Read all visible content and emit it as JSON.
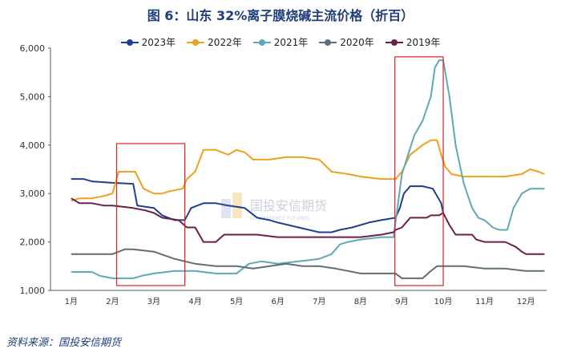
{
  "title": "图 6：山东 32%离子膜烧碱主流价格（折百）",
  "source": "资料来源：国投安信期货",
  "watermark": {
    "name": "国投安信期货",
    "sub": "SDIC ESSENCE FUTURES"
  },
  "chart_data": {
    "type": "line",
    "xlabel": "",
    "ylabel": "",
    "categories": [
      "1月",
      "2月",
      "3月",
      "4月",
      "5月",
      "6月",
      "7月",
      "8月",
      "9月",
      "10月",
      "11月",
      "12月"
    ],
    "ylim": [
      1000,
      6000
    ],
    "yticks": [
      "1,000",
      "2,000",
      "3,000",
      "4,000",
      "5,000",
      "6,000"
    ],
    "grid": false,
    "legend": "top",
    "series": [
      {
        "name": "2023年",
        "color": "#1f3f8f",
        "points": [
          [
            0.0,
            3300
          ],
          [
            0.3,
            3300
          ],
          [
            0.5,
            3250
          ],
          [
            1.0,
            3220
          ],
          [
            1.5,
            3200
          ],
          [
            1.6,
            2750
          ],
          [
            2.0,
            2700
          ],
          [
            2.2,
            2550
          ],
          [
            2.5,
            2450
          ],
          [
            2.75,
            2450
          ],
          [
            2.9,
            2700
          ],
          [
            3.2,
            2800
          ],
          [
            3.5,
            2800
          ],
          [
            3.8,
            2750
          ],
          [
            4.2,
            2700
          ],
          [
            4.5,
            2500
          ],
          [
            4.8,
            2450
          ],
          [
            5.0,
            2400
          ],
          [
            5.5,
            2300
          ],
          [
            6.0,
            2200
          ],
          [
            6.3,
            2200
          ],
          [
            6.5,
            2250
          ],
          [
            6.8,
            2300
          ],
          [
            7.0,
            2350
          ],
          [
            7.2,
            2400
          ],
          [
            7.5,
            2450
          ],
          [
            7.85,
            2500
          ],
          [
            7.95,
            2700
          ],
          [
            8.05,
            3000
          ],
          [
            8.2,
            3150
          ],
          [
            8.5,
            3150
          ],
          [
            8.75,
            3100
          ],
          [
            8.95,
            2800
          ],
          [
            9.0,
            2600
          ]
        ]
      },
      {
        "name": "2022年",
        "color": "#f0a020",
        "points": [
          [
            0.0,
            2850
          ],
          [
            0.2,
            2900
          ],
          [
            0.5,
            2900
          ],
          [
            0.8,
            2950
          ],
          [
            1.0,
            3000
          ],
          [
            1.15,
            3450
          ],
          [
            1.55,
            3450
          ],
          [
            1.75,
            3100
          ],
          [
            2.0,
            3000
          ],
          [
            2.2,
            3000
          ],
          [
            2.4,
            3050
          ],
          [
            2.7,
            3100
          ],
          [
            2.8,
            3300
          ],
          [
            3.0,
            3450
          ],
          [
            3.2,
            3900
          ],
          [
            3.5,
            3900
          ],
          [
            3.8,
            3800
          ],
          [
            4.0,
            3900
          ],
          [
            4.2,
            3850
          ],
          [
            4.4,
            3700
          ],
          [
            4.8,
            3700
          ],
          [
            5.2,
            3750
          ],
          [
            5.6,
            3750
          ],
          [
            6.0,
            3700
          ],
          [
            6.3,
            3450
          ],
          [
            6.7,
            3400
          ],
          [
            7.0,
            3350
          ],
          [
            7.5,
            3300
          ],
          [
            7.85,
            3300
          ],
          [
            8.0,
            3450
          ],
          [
            8.2,
            3800
          ],
          [
            8.5,
            4000
          ],
          [
            8.7,
            4100
          ],
          [
            8.85,
            4100
          ],
          [
            8.95,
            3800
          ],
          [
            9.05,
            3550
          ],
          [
            9.2,
            3400
          ],
          [
            9.5,
            3350
          ],
          [
            10.0,
            3350
          ],
          [
            10.5,
            3350
          ],
          [
            10.9,
            3400
          ],
          [
            11.1,
            3500
          ],
          [
            11.3,
            3450
          ],
          [
            11.45,
            3400
          ]
        ]
      },
      {
        "name": "2021年",
        "color": "#5fa8b4",
        "points": [
          [
            0.0,
            1380
          ],
          [
            0.5,
            1380
          ],
          [
            0.7,
            1300
          ],
          [
            1.0,
            1250
          ],
          [
            1.5,
            1250
          ],
          [
            1.7,
            1300
          ],
          [
            2.0,
            1350
          ],
          [
            2.5,
            1400
          ],
          [
            3.0,
            1400
          ],
          [
            3.5,
            1350
          ],
          [
            4.0,
            1350
          ],
          [
            4.3,
            1550
          ],
          [
            4.6,
            1600
          ],
          [
            5.0,
            1550
          ],
          [
            5.5,
            1600
          ],
          [
            6.0,
            1650
          ],
          [
            6.3,
            1750
          ],
          [
            6.5,
            1950
          ],
          [
            6.7,
            2000
          ],
          [
            7.0,
            2050
          ],
          [
            7.5,
            2100
          ],
          [
            7.8,
            2100
          ],
          [
            8.0,
            3400
          ],
          [
            8.3,
            4200
          ],
          [
            8.5,
            4500
          ],
          [
            8.7,
            5000
          ],
          [
            8.8,
            5600
          ],
          [
            8.9,
            5750
          ],
          [
            9.0,
            5750
          ],
          [
            9.15,
            5000
          ],
          [
            9.3,
            4000
          ],
          [
            9.5,
            3200
          ],
          [
            9.7,
            2700
          ],
          [
            9.85,
            2500
          ],
          [
            10.0,
            2450
          ],
          [
            10.2,
            2300
          ],
          [
            10.35,
            2250
          ],
          [
            10.55,
            2250
          ],
          [
            10.7,
            2700
          ],
          [
            10.9,
            3000
          ],
          [
            11.1,
            3100
          ],
          [
            11.45,
            3100
          ]
        ]
      },
      {
        "name": "2020年",
        "color": "#5e6e78",
        "points": [
          [
            0.0,
            1750
          ],
          [
            0.5,
            1750
          ],
          [
            1.0,
            1750
          ],
          [
            1.3,
            1850
          ],
          [
            1.5,
            1850
          ],
          [
            2.0,
            1800
          ],
          [
            2.5,
            1650
          ],
          [
            3.0,
            1550
          ],
          [
            3.5,
            1500
          ],
          [
            4.0,
            1500
          ],
          [
            4.4,
            1450
          ],
          [
            4.8,
            1500
          ],
          [
            5.2,
            1550
          ],
          [
            5.6,
            1500
          ],
          [
            6.0,
            1500
          ],
          [
            6.4,
            1450
          ],
          [
            6.7,
            1400
          ],
          [
            7.0,
            1350
          ],
          [
            7.5,
            1350
          ],
          [
            7.85,
            1350
          ],
          [
            8.0,
            1250
          ],
          [
            8.5,
            1250
          ],
          [
            8.7,
            1400
          ],
          [
            8.85,
            1500
          ],
          [
            9.0,
            1500
          ],
          [
            9.5,
            1500
          ],
          [
            10.0,
            1450
          ],
          [
            10.5,
            1450
          ],
          [
            11.0,
            1400
          ],
          [
            11.45,
            1400
          ]
        ]
      },
      {
        "name": "2019年",
        "color": "#6b1f4a",
        "points": [
          [
            0.0,
            2900
          ],
          [
            0.2,
            2800
          ],
          [
            0.5,
            2800
          ],
          [
            0.8,
            2750
          ],
          [
            1.0,
            2750
          ],
          [
            1.5,
            2700
          ],
          [
            1.8,
            2650
          ],
          [
            2.0,
            2600
          ],
          [
            2.2,
            2500
          ],
          [
            2.6,
            2450
          ],
          [
            2.8,
            2300
          ],
          [
            3.0,
            2300
          ],
          [
            3.2,
            2000
          ],
          [
            3.5,
            2000
          ],
          [
            3.7,
            2150
          ],
          [
            4.0,
            2150
          ],
          [
            4.5,
            2150
          ],
          [
            5.0,
            2100
          ],
          [
            5.5,
            2100
          ],
          [
            6.0,
            2100
          ],
          [
            6.5,
            2100
          ],
          [
            7.0,
            2100
          ],
          [
            7.5,
            2150
          ],
          [
            7.8,
            2200
          ],
          [
            7.85,
            2250
          ],
          [
            8.0,
            2300
          ],
          [
            8.2,
            2500
          ],
          [
            8.6,
            2500
          ],
          [
            8.7,
            2550
          ],
          [
            8.9,
            2550
          ],
          [
            9.0,
            2600
          ],
          [
            9.15,
            2350
          ],
          [
            9.3,
            2150
          ],
          [
            9.5,
            2150
          ],
          [
            9.7,
            2150
          ],
          [
            9.8,
            2050
          ],
          [
            10.0,
            2000
          ],
          [
            10.5,
            2000
          ],
          [
            10.75,
            1900
          ],
          [
            10.9,
            1800
          ],
          [
            11.0,
            1750
          ],
          [
            11.45,
            1750
          ]
        ]
      }
    ],
    "highlights": [
      {
        "x_from": 1.1,
        "x_to": 2.75,
        "y_from": 1100,
        "y_to": 4030
      },
      {
        "x_from": 7.83,
        "x_to": 9.0,
        "y_from": 1100,
        "y_to": 5820
      }
    ]
  }
}
